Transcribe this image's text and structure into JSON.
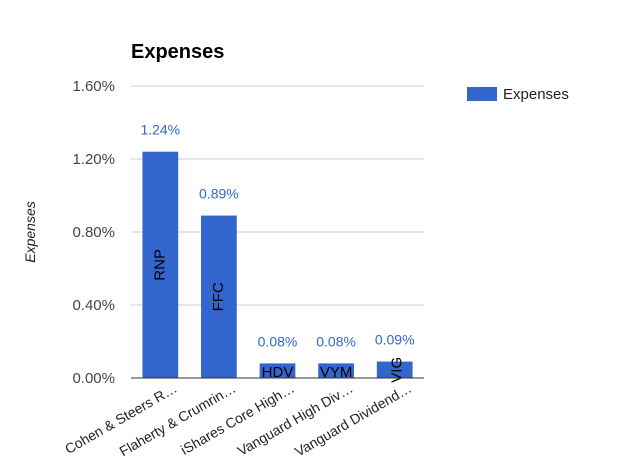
{
  "chart_data": {
    "type": "bar",
    "title": "Expenses",
    "ylabel": "Expenses",
    "xlabel": "",
    "ylim": [
      0,
      1.6
    ],
    "yticks": [
      "0.00%",
      "0.40%",
      "0.80%",
      "1.20%",
      "1.60%"
    ],
    "ytick_values": [
      0,
      0.4,
      0.8,
      1.2,
      1.6
    ],
    "grid": true,
    "legend_position": "right",
    "series": [
      {
        "name": "Expenses",
        "color": "#3366cc",
        "values": [
          1.24,
          0.89,
          0.08,
          0.08,
          0.09
        ],
        "data_labels": [
          "1.24%",
          "0.89%",
          "0.08%",
          "0.08%",
          "0.09%"
        ],
        "bar_labels": [
          "RNP",
          "FFC",
          "HDV",
          "VYM",
          "VIG"
        ]
      }
    ],
    "categories": [
      "Cohen & Steers R…",
      "Flaherty & Crumrin…",
      "iShares Core High…",
      "Vanguard High Div…",
      "Vanguard Dividend…"
    ]
  }
}
